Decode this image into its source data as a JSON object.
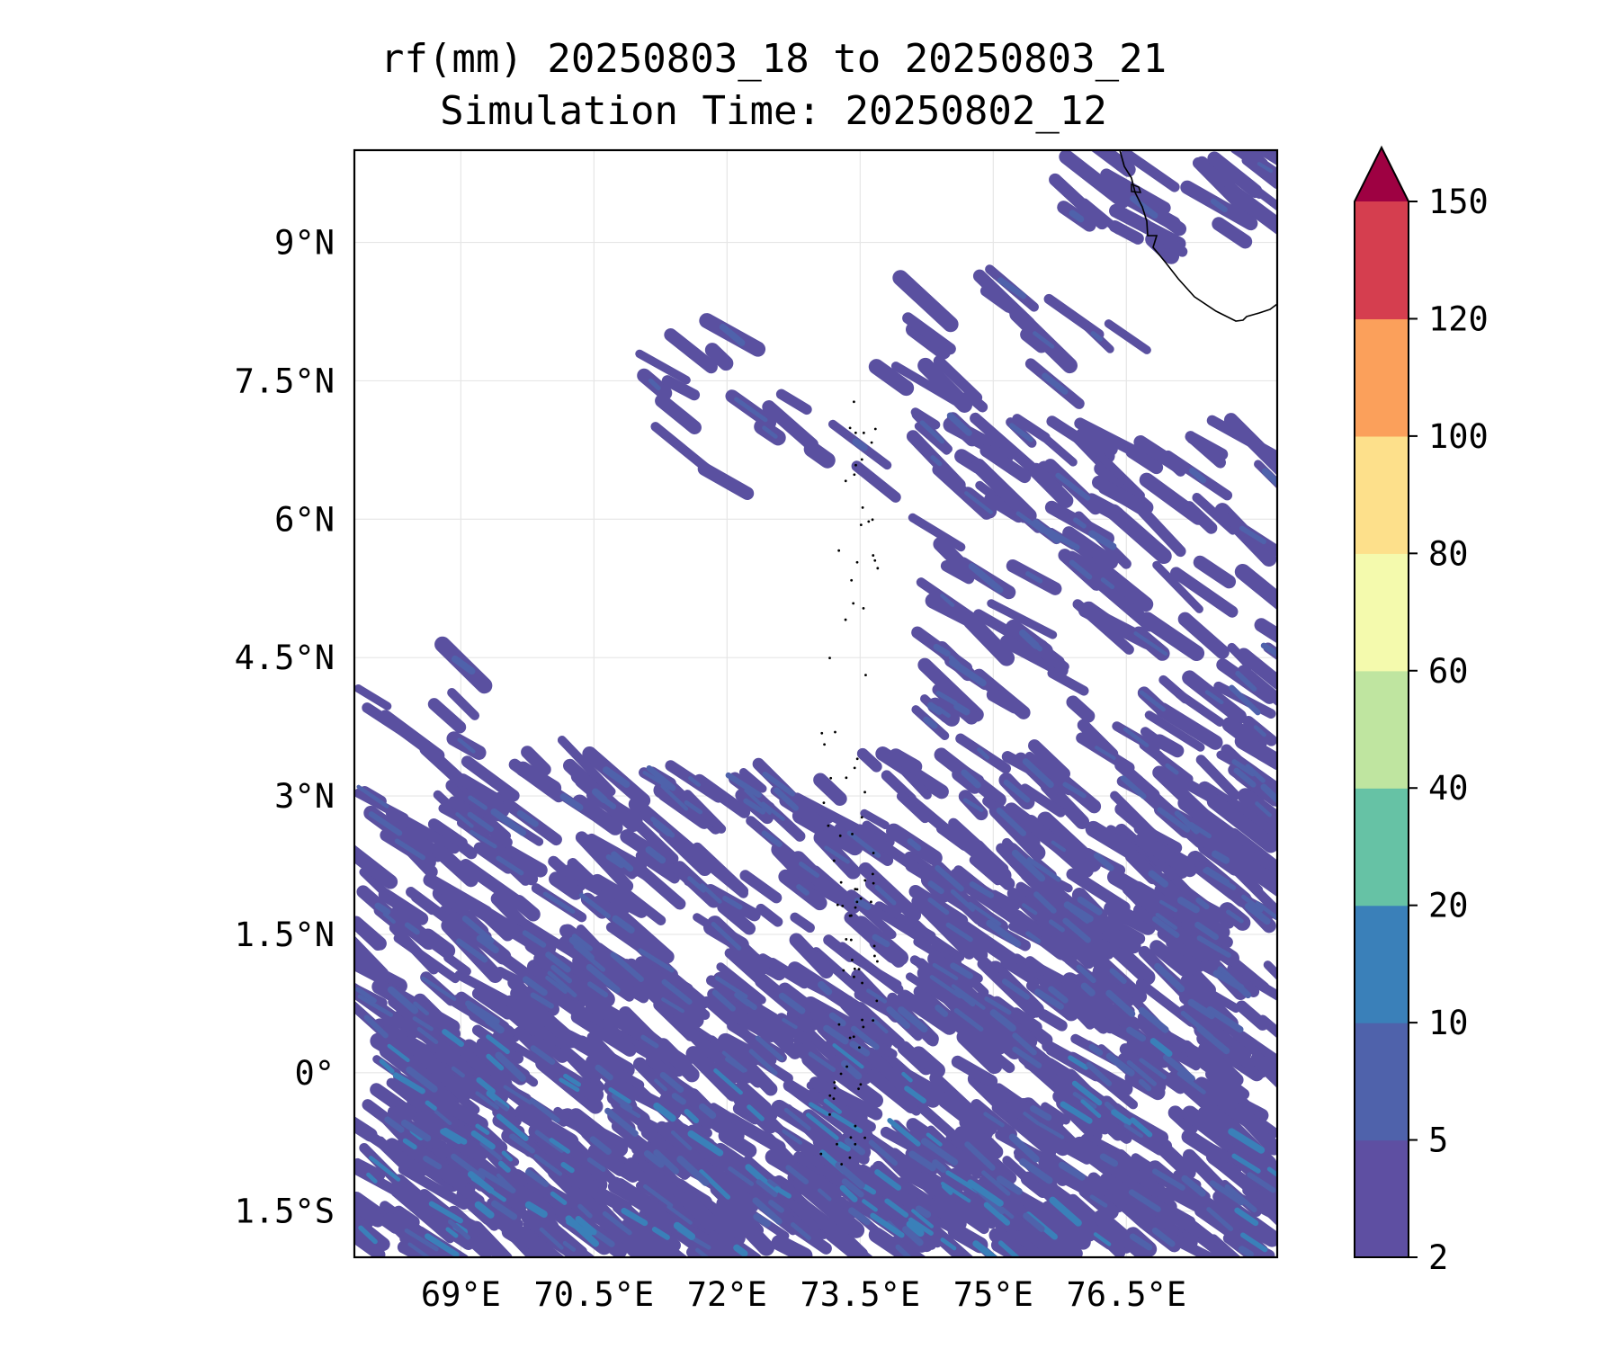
{
  "title": {
    "line1": "rf(mm) 20250803_18 to 20250803_21",
    "line2": "Simulation Time: 20250802_12"
  },
  "map": {
    "lon_range": [
      67.8,
      78.2
    ],
    "lat_range": [
      -2.0,
      10.0
    ],
    "x_ticks": [
      {
        "value": 69,
        "label": "69°E"
      },
      {
        "value": 70.5,
        "label": "70.5°E"
      },
      {
        "value": 72,
        "label": "72°E"
      },
      {
        "value": 73.5,
        "label": "73.5°E"
      },
      {
        "value": 75,
        "label": "75°E"
      },
      {
        "value": 76.5,
        "label": "76.5°E"
      }
    ],
    "y_ticks": [
      {
        "value": 9,
        "label": "9°N"
      },
      {
        "value": 7.5,
        "label": "7.5°N"
      },
      {
        "value": 6,
        "label": "6°N"
      },
      {
        "value": 4.5,
        "label": "4.5°N"
      },
      {
        "value": 3,
        "label": "3°N"
      },
      {
        "value": 1.5,
        "label": "1.5°N"
      },
      {
        "value": 0,
        "label": "0°"
      },
      {
        "value": -1.5,
        "label": "1.5°S"
      }
    ],
    "grid": true
  },
  "colorbar": {
    "levels": [
      "2",
      "5",
      "10",
      "20",
      "40",
      "60",
      "80",
      "100",
      "120",
      "150"
    ],
    "colors": [
      "#5e4fa2",
      "#4f62ab",
      "#3a80b9",
      "#66c2a5",
      "#bfe5a0",
      "#f4faad",
      "#fde08b",
      "#fba05b",
      "#d53e4f"
    ],
    "extend_color": "#9e0142",
    "extend": "max"
  }
}
